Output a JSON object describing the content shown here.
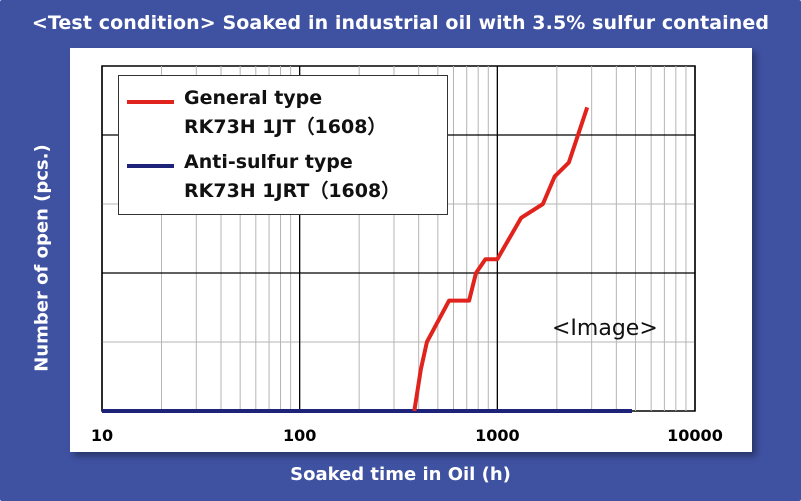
{
  "chart_data": {
    "type": "line",
    "title": "<Test condition> Soaked in industrial oil with 3.5% sulfur contained",
    "xlabel": "Soaked time in Oil  (h)",
    "ylabel": "Number  of open (pcs.)",
    "xscale": "log",
    "xlim": [
      10,
      10000
    ],
    "ylim": [
      0,
      5
    ],
    "xticks": [
      10,
      100,
      1000,
      10000
    ],
    "xtick_labels": [
      "10",
      "100",
      "1000",
      "10000"
    ],
    "grid": true,
    "legend_position": "top-left",
    "annotation": "<Image>",
    "series": [
      {
        "name_line1": "General type",
        "name_line2": "RK73H 1JT（1608）",
        "color": "#e0231c",
        "x": [
          380,
          410,
          440,
          480,
          570,
          720,
          780,
          870,
          1000,
          1320,
          1700,
          1950,
          2300,
          2850
        ],
        "y": [
          0,
          0.6,
          1.0,
          1.2,
          1.6,
          1.6,
          2.0,
          2.2,
          2.2,
          2.8,
          3.0,
          3.4,
          3.6,
          4.4
        ]
      },
      {
        "name_line1": "Anti-sulfur type",
        "name_line2": "RK73H 1JRT（1608）",
        "color": "#1e237a",
        "x": [
          10,
          4800
        ],
        "y": [
          0,
          0
        ]
      }
    ]
  }
}
